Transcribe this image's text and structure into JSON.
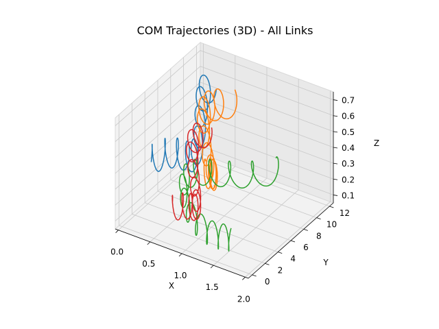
{
  "chart_data": {
    "type": "line",
    "projection": "3d",
    "title": "COM Trajectories (3D) - All Links",
    "xlabel": "X",
    "ylabel": "Y",
    "zlabel": "Z",
    "xlim": [
      -0.05,
      2.05
    ],
    "ylim": [
      -0.6,
      12.6
    ],
    "zlim": [
      0.05,
      0.75
    ],
    "x_ticks": [
      "0.0",
      "0.5",
      "1.0",
      "1.5",
      "2.0"
    ],
    "y_ticks": [
      "0",
      "2",
      "4",
      "6",
      "8",
      "10",
      "12"
    ],
    "z_ticks": [
      "0.1",
      "0.2",
      "0.3",
      "0.4",
      "0.5",
      "0.6",
      "0.7"
    ],
    "grid": true,
    "legend": "none",
    "series": [
      {
        "color": "#1f77b4",
        "description": "upper link, x about 0.05 to 0.8, y 0 to 12, z about 0.35 to 0.70 with looping oscillations",
        "x_range": [
          0.05,
          0.8
        ],
        "y_range": [
          0,
          12
        ],
        "z_range": [
          0.35,
          0.7
        ]
      },
      {
        "color": "#ff7f0e",
        "description": "upper link, x about 0.4 to 1.4, y 0 to 12, z about 0.35 to 0.70 with looping oscillations",
        "x_range": [
          0.4,
          1.4
        ],
        "y_range": [
          0,
          12
        ],
        "z_range": [
          0.35,
          0.7
        ]
      },
      {
        "color": "#2ca02c",
        "description": "lower link, x about 0.4 to 2.0, y 0 to 12, z about 0.05 to 0.35 with looping oscillations",
        "x_range": [
          0.4,
          2.0
        ],
        "y_range": [
          0,
          12
        ],
        "z_range": [
          0.05,
          0.35
        ]
      },
      {
        "color": "#d62728",
        "description": "lower link, x about 0.05 to 1.0, y 0 to 12, z about 0.1 to 0.4 with looping oscillations",
        "x_range": [
          0.05,
          1.0
        ],
        "y_range": [
          0,
          12
        ],
        "z_range": [
          0.1,
          0.4
        ]
      }
    ]
  }
}
